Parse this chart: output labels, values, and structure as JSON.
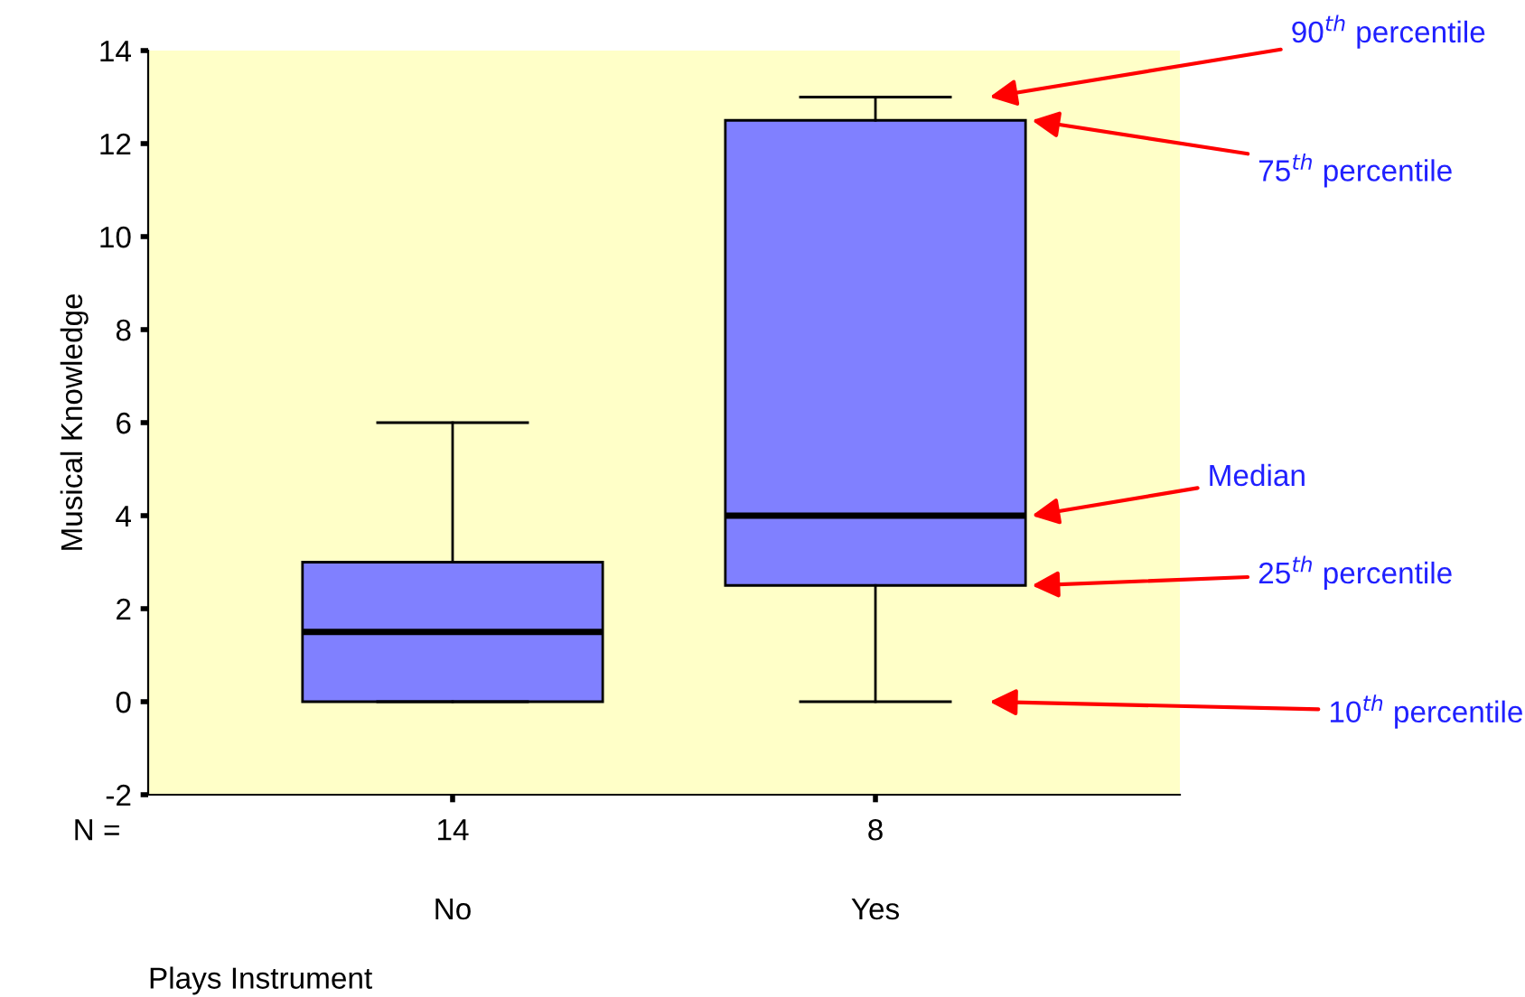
{
  "chart_data": {
    "type": "box",
    "xlabel": "Plays Instrument",
    "ylabel": "Musical Knowledge",
    "categories": [
      "No",
      "Yes"
    ],
    "boxes": [
      {
        "low": 0,
        "q1": 0,
        "median": 1.5,
        "q3": 3,
        "high": 6
      },
      {
        "low": 0,
        "q1": 2.5,
        "median": 4,
        "q3": 12.5,
        "high": 13
      }
    ],
    "color": "#8080ff",
    "ylim": [
      -2,
      14
    ],
    "yticks": [
      -2,
      0,
      2,
      4,
      6,
      8,
      10,
      12,
      14
    ],
    "grid": false,
    "annotations": [
      "N =",
      {
        "text": "14",
        "x": "No"
      },
      {
        "text": "8",
        "x": "Yes"
      },
      "90$^{th}$ percentile",
      "75$^{th}$ percentile",
      "Median",
      "25$^{th}$ percentile",
      "10$^{th}$ percentile"
    ]
  }
}
